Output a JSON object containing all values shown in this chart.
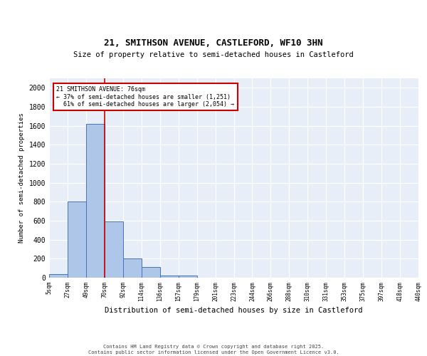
{
  "title": "21, SMITHSON AVENUE, CASTLEFORD, WF10 3HN",
  "subtitle": "Size of property relative to semi-detached houses in Castleford",
  "xlabel": "Distribution of semi-detached houses by size in Castleford",
  "ylabel": "Number of semi-detached properties",
  "bin_labels": [
    "5sqm",
    "27sqm",
    "49sqm",
    "70sqm",
    "92sqm",
    "114sqm",
    "136sqm",
    "157sqm",
    "179sqm",
    "201sqm",
    "223sqm",
    "244sqm",
    "266sqm",
    "288sqm",
    "310sqm",
    "331sqm",
    "353sqm",
    "375sqm",
    "397sqm",
    "418sqm",
    "440sqm"
  ],
  "bar_values": [
    35,
    800,
    1620,
    595,
    205,
    115,
    25,
    20,
    0,
    0,
    0,
    0,
    0,
    0,
    0,
    0,
    0,
    0,
    0,
    0
  ],
  "bar_color": "#aec6e8",
  "bar_edge_color": "#4472c4",
  "background_color": "#e8eef7",
  "grid_color": "#c8d4e8",
  "property_label": "21 SMITHSON AVENUE: 76sqm",
  "pct_smaller": 37,
  "pct_larger": 61,
  "count_smaller": 1251,
  "count_larger": 2054,
  "vline_color": "#cc0000",
  "annotation_box_edgecolor": "#cc0000",
  "ylim": [
    0,
    2100
  ],
  "yticks": [
    0,
    200,
    400,
    600,
    800,
    1000,
    1200,
    1400,
    1600,
    1800,
    2000
  ],
  "footer_line1": "Contains HM Land Registry data © Crown copyright and database right 2025.",
  "footer_line2": "Contains public sector information licensed under the Open Government Licence v3.0."
}
